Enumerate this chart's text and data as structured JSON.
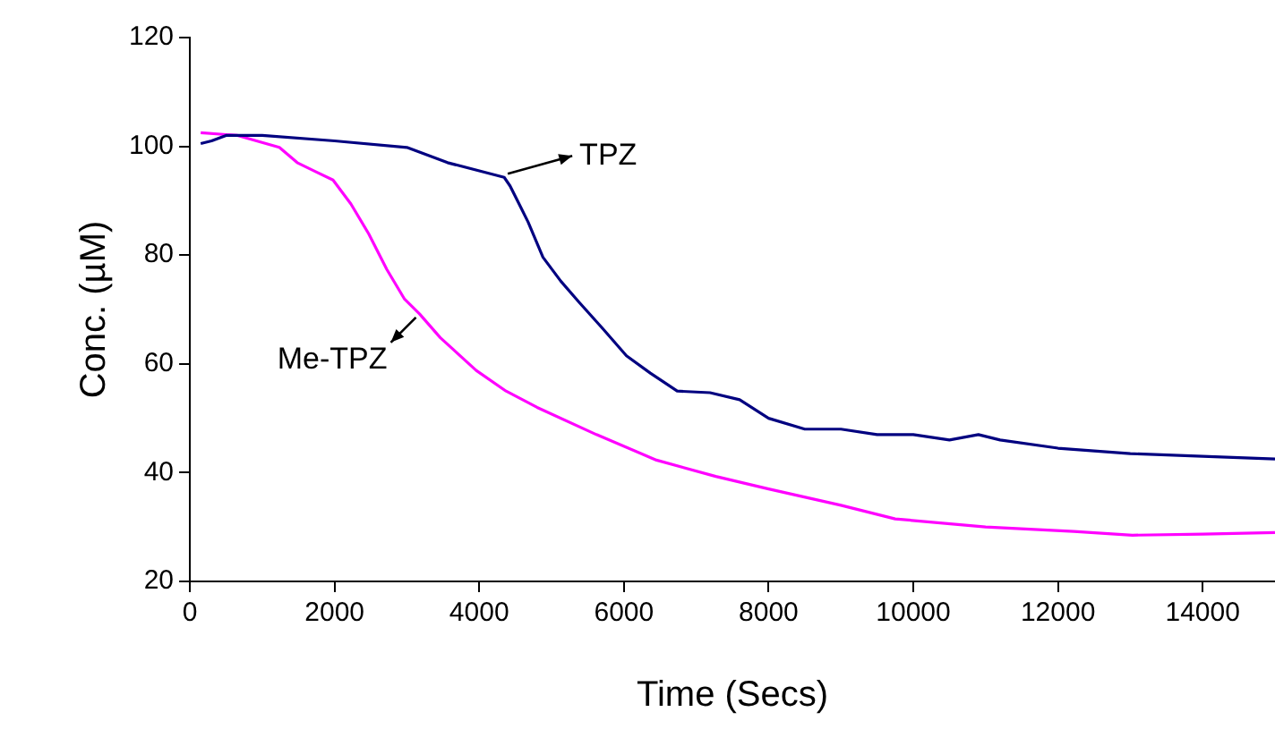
{
  "chart_data": {
    "type": "line",
    "xlabel": "Time (Secs)",
    "ylabel": "Conc. (µM)",
    "xlim": [
      0,
      15000
    ],
    "xticks": [
      0,
      2000,
      4000,
      6000,
      8000,
      10000,
      12000,
      14000
    ],
    "ylim": [
      20,
      120
    ],
    "yticks": [
      20,
      40,
      60,
      80,
      100,
      120
    ],
    "grid": false,
    "legend": false,
    "marker": "none",
    "line_style": "solid",
    "series": [
      {
        "name": "TPZ",
        "color": "#000080",
        "x": [
          150,
          300,
          500,
          1000,
          2000,
          3000,
          3562,
          4345,
          4427,
          4551,
          4675,
          4881,
          5128,
          5376,
          5706,
          6035,
          6365,
          6736,
          7190,
          7600,
          8000,
          8500,
          9000,
          9500,
          10000,
          10500,
          10900,
          11200,
          12000,
          13000,
          14000,
          15000
        ],
        "values": [
          100.5,
          101,
          102,
          102,
          101,
          99.8,
          97,
          94.3,
          92.7,
          89.4,
          86.1,
          79.6,
          75.2,
          71.4,
          66.5,
          61.5,
          58.3,
          55,
          54.7,
          53.4,
          50,
          48,
          48,
          47,
          47,
          46,
          47,
          46,
          44.5,
          43.5,
          43,
          42.5
        ]
      },
      {
        "name": "Me-TPZ",
        "color": "#ff00ff",
        "x": [
          150,
          660,
          1237,
          1484,
          1731,
          1979,
          2226,
          2473,
          2721,
          2968,
          3174,
          3463,
          3958,
          4370,
          4800,
          5620,
          6450,
          7270,
          8000,
          9000,
          9750,
          11000,
          12220,
          13030,
          14000,
          15000
        ],
        "values": [
          102.5,
          102,
          99.8,
          97,
          95.4,
          93.8,
          89.4,
          83.9,
          77.4,
          71.9,
          69.2,
          64.8,
          58.8,
          55,
          52,
          47,
          42.3,
          39.3,
          37,
          34,
          31.5,
          30,
          29.2,
          28.5,
          28.7,
          29
        ]
      }
    ]
  }
}
